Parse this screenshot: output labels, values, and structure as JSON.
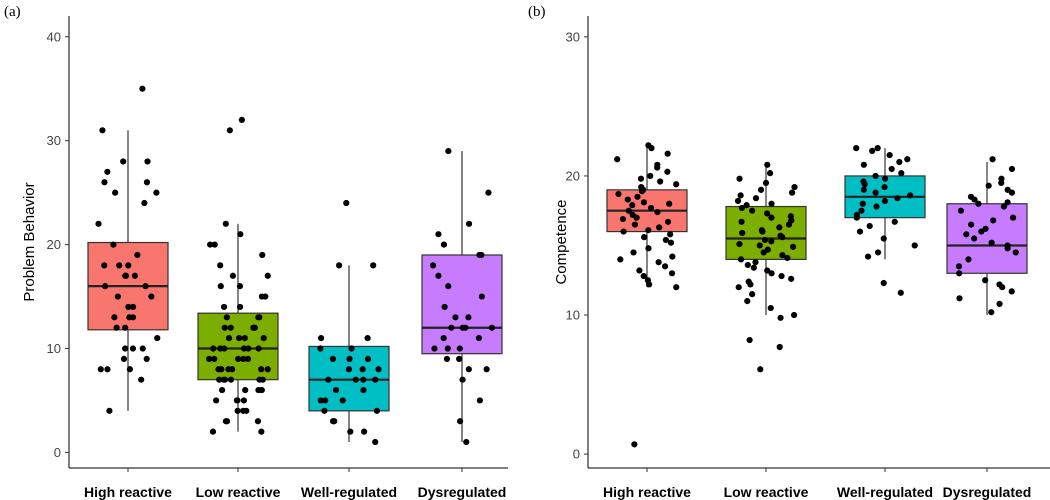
{
  "chart_data": [
    {
      "type": "box",
      "panel_label": "(a)",
      "title": "",
      "xlabel": "",
      "ylabel": "Problem Behavior",
      "ylim": [
        -1.5,
        42
      ],
      "yticks": [
        0,
        10,
        20,
        30,
        40
      ],
      "categories": [
        "High reactive",
        "Low reactive",
        "Well-regulated",
        "Dysregulated"
      ],
      "colors": [
        "#f8766d",
        "#7cae00",
        "#00bfc4",
        "#c77cff"
      ],
      "boxes": [
        {
          "name": "High reactive",
          "whisker_low": 4,
          "q1": 11.8,
          "median": 16,
          "q3": 20.2,
          "whisker_high": 31,
          "points": [
            35,
            31,
            28,
            28,
            27,
            26,
            26,
            25,
            25,
            24,
            22,
            20,
            19,
            18,
            18,
            18,
            17,
            17,
            17,
            16,
            16,
            15,
            15,
            14,
            14,
            13,
            13,
            13,
            12,
            12,
            11,
            10,
            10,
            10,
            9,
            9,
            8,
            8,
            8,
            7,
            4
          ]
        },
        {
          "name": "Low reactive",
          "whisker_low": 2,
          "q1": 7,
          "median": 10,
          "q3": 13.4,
          "whisker_high": 22,
          "points": [
            32,
            31,
            22,
            21,
            20,
            20,
            19,
            18,
            17,
            17,
            16,
            16,
            15,
            15,
            14,
            14,
            13,
            13,
            13,
            12,
            12,
            12,
            12,
            11,
            11,
            11,
            11,
            10,
            10,
            10,
            10,
            10,
            10,
            9,
            9,
            9,
            9,
            9,
            8,
            8,
            8,
            8,
            8,
            8,
            7,
            7,
            7,
            7,
            7,
            7,
            6,
            6,
            6,
            6,
            6,
            5,
            5,
            5,
            5,
            4,
            4,
            4,
            3,
            3,
            3,
            2,
            2
          ]
        },
        {
          "name": "Well-regulated",
          "whisker_low": 1,
          "q1": 4,
          "median": 7,
          "q3": 10.2,
          "whisker_high": 18,
          "points": [
            24,
            18,
            18,
            11,
            11,
            10,
            10,
            9,
            9,
            9,
            8,
            8,
            8,
            7,
            7,
            7,
            7,
            6,
            6,
            5,
            5,
            5,
            4,
            4,
            3,
            3,
            2,
            2,
            1
          ]
        },
        {
          "name": "Dysregulated",
          "whisker_low": 1,
          "q1": 9.5,
          "median": 12,
          "q3": 19,
          "whisker_high": 29,
          "points": [
            29,
            25,
            22,
            21,
            20,
            19,
            19,
            18,
            17,
            16,
            15,
            14,
            13,
            13,
            12,
            12,
            12,
            12,
            11,
            11,
            10,
            10,
            10,
            9,
            9,
            8,
            8,
            7,
            5,
            3,
            1
          ]
        }
      ]
    },
    {
      "type": "box",
      "panel_label": "(b)",
      "title": "",
      "xlabel": "",
      "ylabel": "Competence",
      "ylim": [
        -1,
        31.5
      ],
      "yticks": [
        0,
        10,
        20,
        30
      ],
      "categories": [
        "High reactive",
        "Low reactive",
        "Well-regulated",
        "Dysregulated"
      ],
      "colors": [
        "#f8766d",
        "#7cae00",
        "#00bfc4",
        "#c77cff"
      ],
      "boxes": [
        {
          "name": "High reactive",
          "whisker_low": 12,
          "q1": 16,
          "median": 17.5,
          "q3": 19,
          "whisker_high": 22.2,
          "points": [
            22.2,
            22,
            21.6,
            21.2,
            20.8,
            20.6,
            20.3,
            20,
            19.8,
            19.6,
            19.4,
            19.2,
            19,
            18.9,
            18.7,
            18.5,
            18.3,
            18.1,
            18,
            17.9,
            17.7,
            17.5,
            17.4,
            17.2,
            17,
            16.9,
            16.7,
            16.5,
            16.3,
            16.1,
            16,
            15.8,
            15.6,
            15.4,
            15.2,
            14.8,
            14.5,
            14.2,
            14,
            13.8,
            13.5,
            13.2,
            13,
            12.8,
            12.5,
            12.2,
            12,
            0.7
          ]
        },
        {
          "name": "Low reactive",
          "whisker_low": 10,
          "q1": 14,
          "median": 15.5,
          "q3": 17.8,
          "whisker_high": 21,
          "points": [
            20.8,
            20.2,
            19.8,
            19.5,
            19.2,
            19,
            18.8,
            18.6,
            18.4,
            18.2,
            18,
            17.9,
            17.7,
            17.5,
            17.3,
            17.1,
            17,
            16.8,
            16.7,
            16.5,
            16.3,
            16.1,
            16,
            15.9,
            15.7,
            15.6,
            15.4,
            15.3,
            15.1,
            15,
            14.9,
            14.7,
            14.5,
            14.3,
            14.1,
            14,
            13.8,
            13.6,
            13.4,
            13.2,
            13,
            12.8,
            12.6,
            12.4,
            12.2,
            12,
            11.5,
            11,
            10.5,
            10,
            9.8,
            8.2,
            7.7,
            6.1
          ]
        },
        {
          "name": "Well-regulated",
          "whisker_low": 14,
          "q1": 17,
          "median": 18.5,
          "q3": 20,
          "whisker_high": 22,
          "points": [
            22,
            22,
            21.8,
            21.5,
            21.2,
            21,
            20.8,
            20.5,
            20.2,
            20,
            19.8,
            19.6,
            19.4,
            19.2,
            19,
            18.8,
            18.6,
            18.4,
            18.2,
            18,
            17.8,
            17.5,
            17.2,
            17,
            16.7,
            16.4,
            16,
            15.5,
            15,
            14.5,
            14.2,
            12.3,
            11.6
          ]
        },
        {
          "name": "Dysregulated",
          "whisker_low": 10,
          "q1": 13,
          "median": 15,
          "q3": 18,
          "whisker_high": 21,
          "points": [
            21.2,
            20.5,
            19.8,
            19.5,
            19.3,
            19,
            18.8,
            18.5,
            18.3,
            18.1,
            18,
            17.8,
            17.5,
            17,
            16.8,
            16.5,
            16.2,
            16,
            15.8,
            15.5,
            15.2,
            15,
            14.8,
            14.5,
            14,
            13.5,
            13,
            12.5,
            12.2,
            12,
            11.7,
            11.2,
            10.8,
            10.2
          ]
        }
      ]
    }
  ]
}
